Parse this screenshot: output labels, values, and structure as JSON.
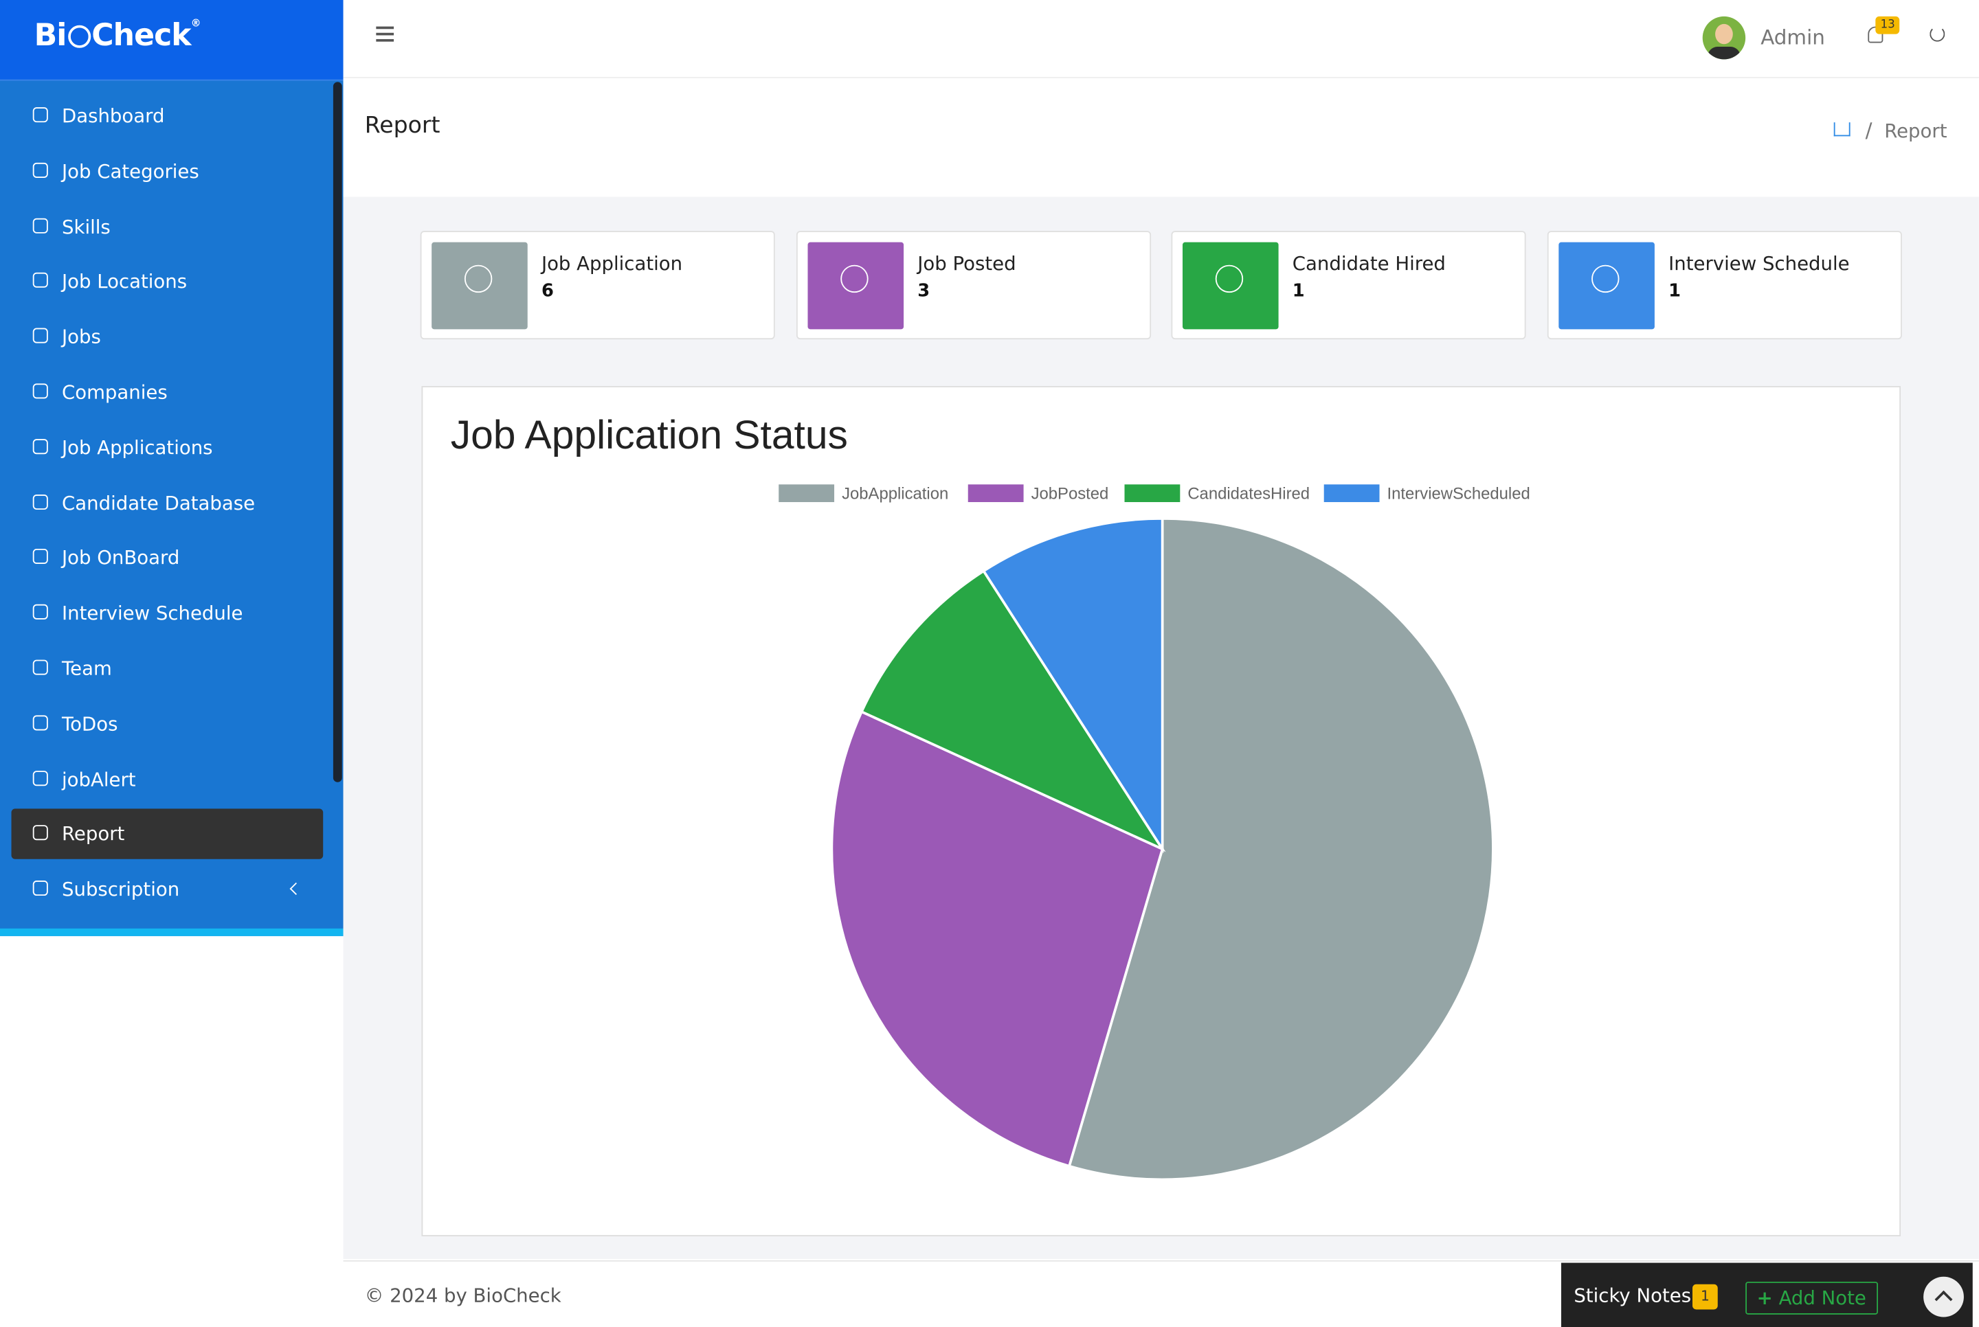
{
  "brand": {
    "prefix": "Bi",
    "suffix": "Check"
  },
  "sidebar": {
    "items": [
      "Dashboard",
      "Job Categories",
      "Skills",
      "Job Locations",
      "Jobs",
      "Companies",
      "Job Applications",
      "Candidate Database",
      "Job OnBoard",
      "Interview Schedule",
      "Team",
      "ToDos",
      "jobAlert",
      "Report",
      "Subscription"
    ]
  },
  "header": {
    "user": "Admin",
    "notifications": 13
  },
  "page": {
    "title": "Report",
    "breadcrumb": "Report"
  },
  "stats": [
    {
      "label": "Job Application",
      "value": 6,
      "color": "#95a5a6"
    },
    {
      "label": "Job Posted",
      "value": 3,
      "color": "#9b59b6"
    },
    {
      "label": "Candidate Hired",
      "value": 1,
      "color": "#28a745"
    },
    {
      "label": "Interview Schedule",
      "value": 1,
      "color": "#3c8be6"
    }
  ],
  "chart_data": {
    "type": "pie",
    "title": "Job Application Status",
    "categories": [
      "JobApplication",
      "JobPosted",
      "CandidatesHired",
      "InterviewScheduled"
    ],
    "values": [
      6,
      3,
      1,
      1
    ],
    "colors": [
      "#95a5a6",
      "#9b59b6",
      "#28a745",
      "#3c8be6"
    ],
    "legend": "top"
  },
  "footer": {
    "copyright": "© 2024 by BioCheck",
    "sticky_notes": "Sticky Notes",
    "sticky_count": 1,
    "add_note": "Add Note"
  }
}
